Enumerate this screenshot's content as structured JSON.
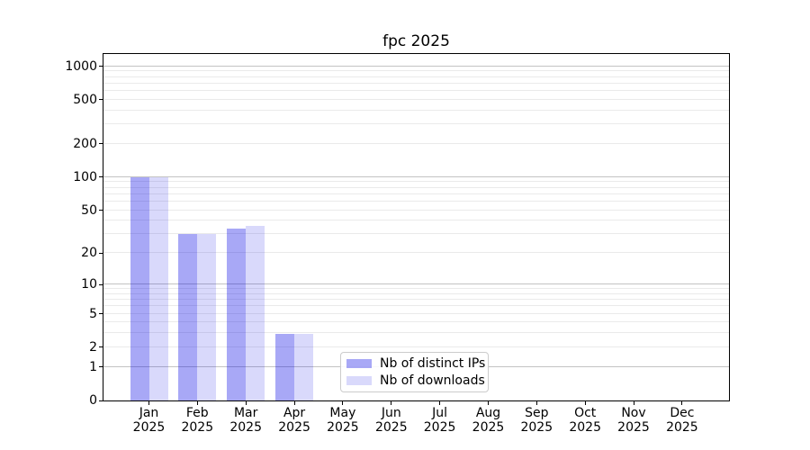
{
  "title": "fpc 2025",
  "chart_data": {
    "type": "bar",
    "title": "fpc 2025",
    "x_labels": [
      {
        "month": "Jan",
        "year": "2025"
      },
      {
        "month": "Feb",
        "year": "2025"
      },
      {
        "month": "Mar",
        "year": "2025"
      },
      {
        "month": "Apr",
        "year": "2025"
      },
      {
        "month": "May",
        "year": "2025"
      },
      {
        "month": "Jun",
        "year": "2025"
      },
      {
        "month": "Jul",
        "year": "2025"
      },
      {
        "month": "Aug",
        "year": "2025"
      },
      {
        "month": "Sep",
        "year": "2025"
      },
      {
        "month": "Oct",
        "year": "2025"
      },
      {
        "month": "Nov",
        "year": "2025"
      },
      {
        "month": "Dec",
        "year": "2025"
      }
    ],
    "series": [
      {
        "name": "Nb of distinct IPs",
        "color": "rgba(0,0,230,0.34)",
        "values": [
          100,
          30,
          34,
          3,
          0,
          0,
          0,
          0,
          0,
          0,
          0,
          0
        ]
      },
      {
        "name": "Nb of downloads",
        "color": "rgba(0,0,230,0.15)",
        "values": [
          100,
          30,
          36,
          3,
          0,
          0,
          0,
          0,
          0,
          0,
          0,
          0
        ]
      }
    ],
    "y_axis": {
      "scale": "log1p",
      "tick_values": [
        0,
        1,
        2,
        5,
        10,
        20,
        50,
        100,
        200,
        500,
        1000
      ],
      "major_gridlines": [
        1,
        10,
        100,
        1000
      ],
      "minor_gridlines": [
        2,
        3,
        4,
        5,
        6,
        7,
        8,
        9,
        20,
        30,
        40,
        50,
        60,
        70,
        80,
        90,
        200,
        300,
        400,
        500,
        600,
        700,
        800,
        900
      ],
      "ymax_visible": 1300
    },
    "legend_position": "bottom-center",
    "grid": true
  },
  "colors": {
    "major_grid": "#c3c3c3",
    "minor_grid": "#eaeaea",
    "spine": "#000000",
    "legend_border": "#cccccc",
    "background": "#ffffff",
    "text": "#000000"
  }
}
